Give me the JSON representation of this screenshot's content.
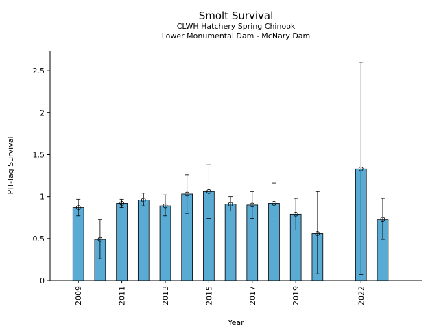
{
  "chart_data": {
    "type": "bar",
    "title": "Smolt Survival",
    "subtitle_lines": [
      "CLWH Hatchery Spring Chinook",
      "Lower Monumental Dam - McNary Dam"
    ],
    "xlabel": "Year",
    "ylabel": "PIT-Tag Survival",
    "xlim": [
      2007.7,
      2024.8
    ],
    "ylim": [
      0,
      2.73
    ],
    "yticks": [
      0,
      0.5,
      1,
      1.5,
      2,
      2.5
    ],
    "ytick_labels": [
      "0",
      "0.5",
      "1",
      "1.5",
      "2",
      "2.5"
    ],
    "xticks": [
      2009,
      2011,
      2013,
      2015,
      2017,
      2019,
      2022
    ],
    "xtick_labels": [
      "2009",
      "2011",
      "2013",
      "2015",
      "2017",
      "2019",
      "2022"
    ],
    "bar_color": "#5aabd4",
    "grid": false,
    "points": [
      {
        "year": 2009,
        "value": 0.87,
        "lower": 0.77,
        "upper": 0.97
      },
      {
        "year": 2010,
        "value": 0.49,
        "lower": 0.26,
        "upper": 0.73
      },
      {
        "year": 2011,
        "value": 0.92,
        "lower": 0.87,
        "upper": 0.97
      },
      {
        "year": 2012,
        "value": 0.96,
        "lower": 0.89,
        "upper": 1.04
      },
      {
        "year": 2013,
        "value": 0.89,
        "lower": 0.77,
        "upper": 1.02
      },
      {
        "year": 2014,
        "value": 1.03,
        "lower": 0.8,
        "upper": 1.26
      },
      {
        "year": 2015,
        "value": 1.06,
        "lower": 0.74,
        "upper": 1.38
      },
      {
        "year": 2016,
        "value": 0.91,
        "lower": 0.83,
        "upper": 1.0
      },
      {
        "year": 2017,
        "value": 0.9,
        "lower": 0.74,
        "upper": 1.06
      },
      {
        "year": 2018,
        "value": 0.92,
        "lower": 0.7,
        "upper": 1.16
      },
      {
        "year": 2019,
        "value": 0.79,
        "lower": 0.6,
        "upper": 0.98
      },
      {
        "year": 2020,
        "value": 0.56,
        "lower": 0.08,
        "upper": 1.06
      },
      {
        "year": 2022,
        "value": 1.33,
        "lower": 0.07,
        "upper": 2.6
      },
      {
        "year": 2023,
        "value": 0.73,
        "lower": 0.49,
        "upper": 0.98
      }
    ]
  }
}
